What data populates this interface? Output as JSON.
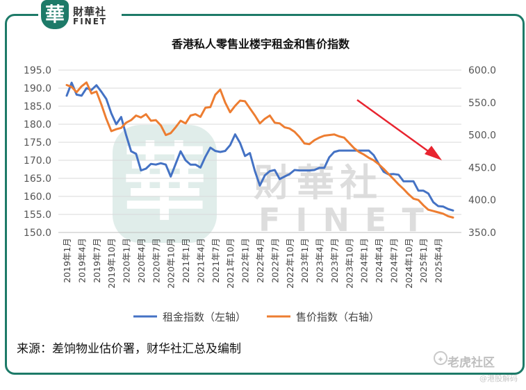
{
  "logo": {
    "badge_char": "華",
    "name_cn": "財華社",
    "name_en": "FINET"
  },
  "watermark": {
    "badge_char": "華",
    "name_cn": "財華社",
    "name_en": "FINET"
  },
  "source_text": "来源：差饷物业估价署，财华社汇总及编制",
  "credit": {
    "main": "老虎社区",
    "sub": "@港股解码"
  },
  "colors": {
    "rent": "#4472c4",
    "price": "#ed7d31",
    "frame": "#1d7a68",
    "arrow": "#e8242f"
  },
  "chart_data": {
    "type": "line",
    "title": "香港私人零售业楼宇租金和售价指数",
    "x_tick_labels": [
      "2019年1月",
      "2019年4月",
      "2019年7月",
      "2019年10月",
      "2020年1月",
      "2020年4月",
      "2020年7月",
      "2020年10月",
      "2021年1月",
      "2021年4月",
      "2021年7月",
      "2021年10月",
      "2022年1月",
      "2022年4月",
      "2022年7月",
      "2022年10月",
      "2023年1月",
      "2023年4月",
      "2023年7月",
      "2023年10月",
      "2024年1月",
      "2024年4月",
      "2024年7月",
      "2024年10月",
      "2025年1月",
      "2025年4月"
    ],
    "left_axis": {
      "min": 150,
      "max": 195,
      "step": 5,
      "tick_labels": [
        "150.0",
        "155.0",
        "160.0",
        "165.0",
        "170.0",
        "175.0",
        "180.0",
        "185.0",
        "190.0",
        "195.0"
      ]
    },
    "right_axis": {
      "min": 350,
      "max": 600,
      "step": 50,
      "tick_labels": [
        "350.0",
        "400.0",
        "450.0",
        "500.0",
        "550.0",
        "600.0"
      ]
    },
    "grid": true,
    "legend_position": "bottom",
    "series": [
      {
        "name": "租金指数（左轴）",
        "axis": "left",
        "values": [
          187.9,
          191.5,
          188.2,
          187.9,
          190.0,
          189.5,
          190.8,
          189.0,
          187.0,
          183.0,
          180.0,
          182.0,
          177.0,
          172.5,
          171.8,
          167.2,
          167.7,
          169.0,
          168.8,
          169.2,
          168.8,
          165.5,
          169.0,
          172.5,
          170.0,
          168.8,
          168.8,
          168.0,
          171.0,
          173.5,
          172.6,
          172.3,
          172.6,
          174.2,
          177.2,
          174.8,
          171.2,
          172.0,
          167.0,
          163.0,
          165.8,
          167.0,
          167.3,
          164.8,
          165.5,
          166.2,
          167.3,
          167.2,
          167.2,
          167.2,
          167.3,
          167.9,
          167.9,
          170.8,
          172.3,
          172.7,
          172.7,
          172.7,
          172.7,
          172.7,
          172.7,
          172.7,
          171.4,
          169.0,
          166.8,
          166.1,
          166.2,
          166.0,
          164.2,
          164.2,
          164.2,
          161.6,
          161.6,
          160.8,
          158.4,
          157.3,
          157.2,
          156.5,
          156.1
        ]
      },
      {
        "name": "售价指数（右轴）",
        "axis": "right",
        "values": [
          577,
          574,
          566,
          575,
          581,
          564,
          567,
          547,
          525,
          506,
          509,
          511,
          519,
          523,
          530,
          527,
          532,
          522,
          523,
          515,
          500,
          503,
          512,
          522,
          518,
          530,
          532,
          528,
          542,
          543,
          562,
          570,
          550,
          535,
          545,
          553,
          552,
          541,
          530,
          518,
          525,
          530,
          519,
          518,
          512,
          510,
          505,
          497,
          487,
          486,
          492,
          496,
          499,
          500,
          501,
          498,
          496,
          488,
          480,
          474,
          470,
          465,
          461,
          455,
          448,
          440,
          432,
          424,
          417,
          409,
          402,
          400,
          392,
          385,
          383,
          381,
          379,
          375,
          373
        ]
      }
    ],
    "annotations": [
      {
        "type": "arrow",
        "description": "downward trend"
      }
    ]
  }
}
